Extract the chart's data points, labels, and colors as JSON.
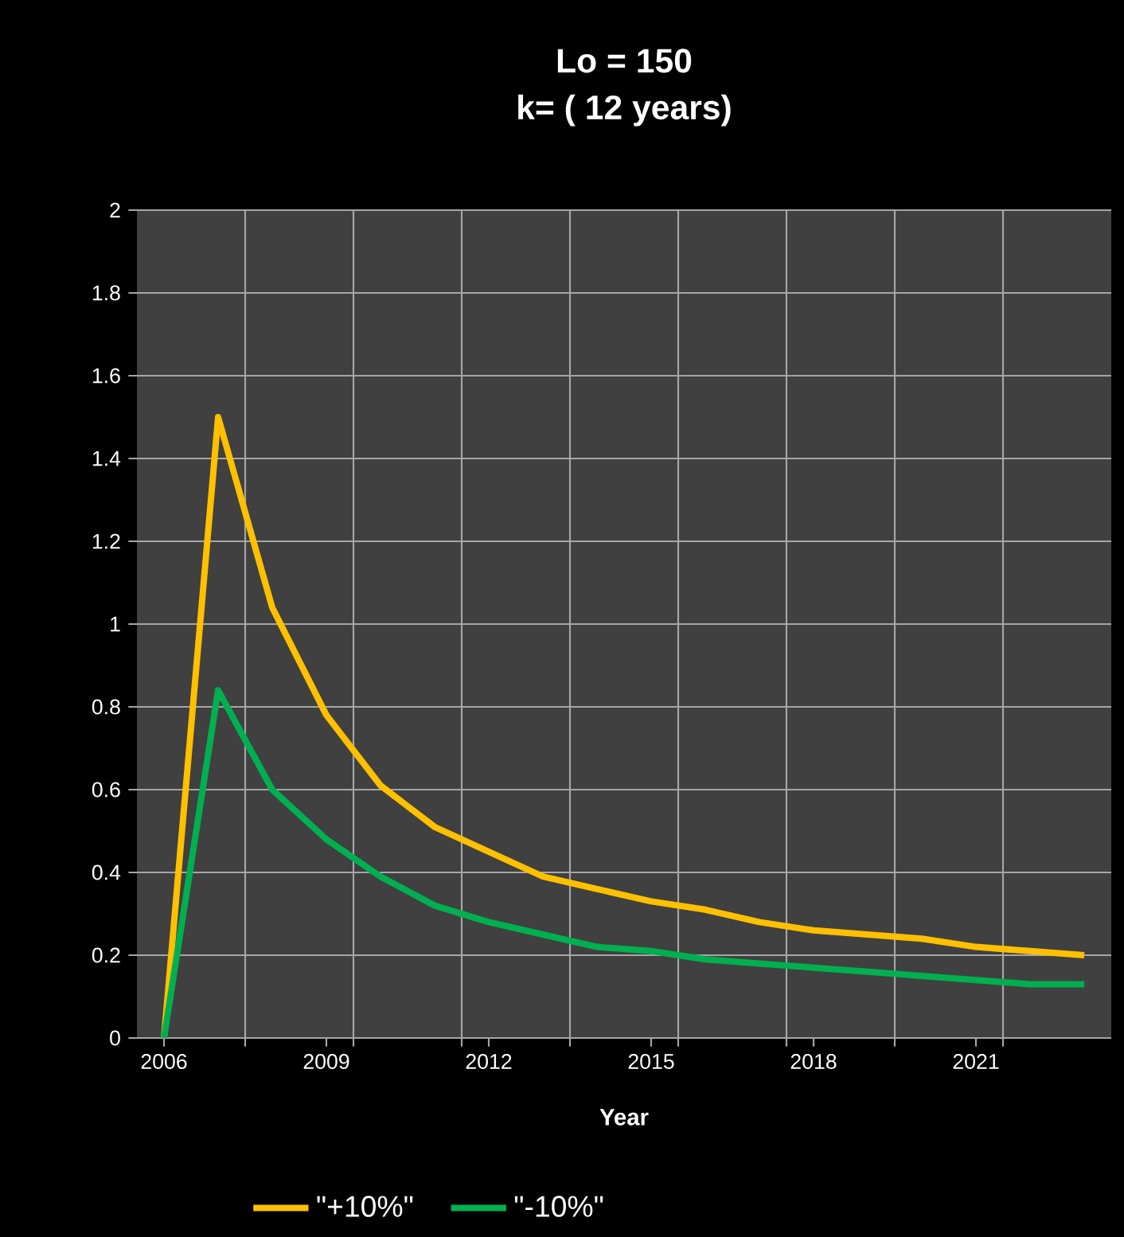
{
  "chart_data": {
    "type": "line",
    "title": "Lo = 150\nk=  ( 12 years)",
    "xlabel": "Year",
    "x": [
      2006,
      2007,
      2008,
      2009,
      2010,
      2011,
      2012,
      2013,
      2014,
      2015,
      2016,
      2017,
      2018,
      2019,
      2020,
      2021,
      2022,
      2023
    ],
    "series": [
      {
        "name": "\"+10%\"",
        "color": "#ffc000",
        "values": [
          0,
          1.5,
          1.04,
          0.78,
          0.61,
          0.51,
          0.45,
          0.39,
          0.36,
          0.33,
          0.31,
          0.28,
          0.26,
          0.25,
          0.24,
          0.22,
          0.21,
          0.2
        ]
      },
      {
        "name": "\"-10%\"",
        "color": "#00b050",
        "values": [
          0,
          0.84,
          0.6,
          0.48,
          0.39,
          0.32,
          0.28,
          0.25,
          0.22,
          0.21,
          0.19,
          0.18,
          0.17,
          0.16,
          0.15,
          0.14,
          0.13,
          0.13
        ]
      }
    ],
    "xlim": [
      2005.5,
      2023.5
    ],
    "xticks": [
      {
        "value": 2006,
        "label": "2006"
      },
      {
        "value": 2007.5,
        "label": null
      },
      {
        "value": 2009,
        "label": "2009"
      },
      {
        "value": 2009.5,
        "label": null
      },
      {
        "value": 2011.5,
        "label": null
      },
      {
        "value": 2012,
        "label": "2012"
      },
      {
        "value": 2013.5,
        "label": null
      },
      {
        "value": 2015,
        "label": "2015"
      },
      {
        "value": 2015.5,
        "label": null
      },
      {
        "value": 2017.5,
        "label": null
      },
      {
        "value": 2018,
        "label": "2018"
      },
      {
        "value": 2019.5,
        "label": null
      },
      {
        "value": 2021,
        "label": "2021"
      },
      {
        "value": 2021.5,
        "label": null
      }
    ],
    "ylim": [
      0,
      2
    ],
    "yticks": [
      0,
      0.2,
      0.4,
      0.6,
      0.8,
      1,
      1.2,
      1.4,
      1.6,
      1.8,
      2
    ],
    "grid": true,
    "legend": "bottom",
    "marker": "none",
    "line_style": "solid"
  }
}
